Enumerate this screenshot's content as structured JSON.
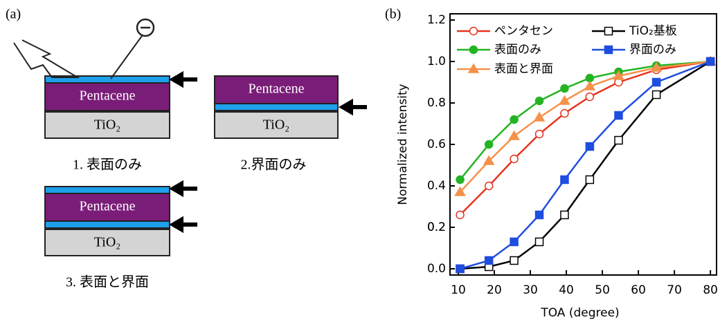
{
  "diagram": {
    "panel_label": "(a)",
    "stacks": [
      {
        "layers": [
          "Pentacene",
          "TiO₂"
        ],
        "caption": "1. 表面のみ"
      },
      {
        "layers": [
          "Pentacene",
          "TiO₂"
        ],
        "caption": "2.界面のみ"
      },
      {
        "layers": [
          "Pentacene",
          "TiO₂"
        ],
        "caption": "3. 表面と界面"
      }
    ]
  },
  "chart_data": {
    "type": "line",
    "panel_label": "(b)",
    "x_label": "TOA (degree)",
    "y_label": "Normalized intensity",
    "x": [
      10.5,
      18.5,
      25.5,
      32.5,
      39.5,
      46.5,
      54.5,
      65,
      80
    ],
    "series": [
      {
        "name": "ペンタセン",
        "color": "#e8321e",
        "marker": "circle-open",
        "values": [
          0.26,
          0.4,
          0.53,
          0.65,
          0.75,
          0.83,
          0.9,
          0.96,
          1.0
        ]
      },
      {
        "name": "表面のみ",
        "color": "#22b422",
        "marker": "circle",
        "values": [
          0.43,
          0.6,
          0.72,
          0.81,
          0.87,
          0.92,
          0.95,
          0.98,
          1.0
        ]
      },
      {
        "name": "表面と界面",
        "color": "#f5914b",
        "marker": "triangle",
        "values": [
          0.37,
          0.52,
          0.64,
          0.73,
          0.81,
          0.88,
          0.93,
          0.97,
          1.0
        ]
      },
      {
        "name": "TiO₂基板",
        "color": "#000000",
        "marker": "square-open",
        "values": [
          0.0,
          0.01,
          0.04,
          0.13,
          0.26,
          0.43,
          0.62,
          0.84,
          1.0
        ]
      },
      {
        "name": "界面のみ",
        "color": "#1f4de0",
        "marker": "square",
        "values": [
          0.0,
          0.04,
          0.13,
          0.26,
          0.43,
          0.59,
          0.74,
          0.9,
          1.0
        ]
      }
    ],
    "xlim": [
      7.7,
      81.7
    ],
    "xticks": [
      10,
      20,
      30,
      40,
      50,
      60,
      70,
      80
    ],
    "ylim": [
      -0.03,
      1.23
    ],
    "yticks": [
      {
        "value": 0,
        "label": "0.0"
      },
      0.2,
      0.4,
      0.6,
      0.8,
      {
        "value": 1,
        "label": "1.0"
      },
      0.2,
      1.2
    ],
    "legend": "upper left"
  }
}
